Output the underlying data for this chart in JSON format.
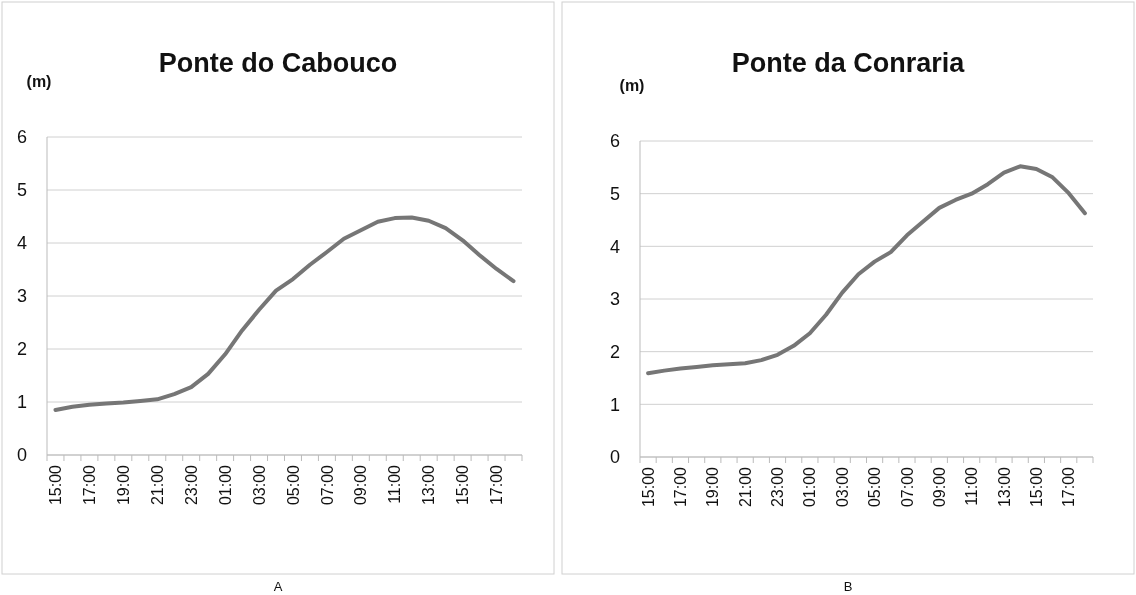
{
  "chart_data": [
    {
      "type": "line",
      "title": "Ponte do Cabouco",
      "ylabel": "(m)",
      "annotations": [
        "A"
      ],
      "categories": [
        "15:00",
        null,
        "17:00",
        null,
        "19:00",
        null,
        "21:00",
        null,
        "23:00",
        null,
        "01:00",
        null,
        "03:00",
        null,
        "05:00",
        null,
        "07:00",
        null,
        "09:00",
        null,
        "11:00",
        null,
        "13:00",
        null,
        "15:00",
        null,
        "17:00",
        null
      ],
      "series": [
        {
          "color": "#767676",
          "values": [
            0.85,
            0.91,
            0.95,
            0.97,
            0.99,
            1.02,
            1.05,
            1.15,
            1.28,
            1.53,
            1.9,
            2.35,
            2.74,
            3.1,
            3.32,
            3.59,
            3.83,
            4.08,
            4.24,
            4.4,
            4.47,
            4.48,
            4.42,
            4.28,
            4.05,
            3.77,
            3.51,
            3.28
          ]
        }
      ],
      "ylim": [
        0,
        6
      ],
      "yticks": [
        0,
        1,
        2,
        3,
        4,
        5,
        6
      ],
      "grid": "y"
    },
    {
      "type": "line",
      "title": "Ponte da Conraria",
      "ylabel": "(m)",
      "annotations": [
        "B"
      ],
      "categories": [
        "15:00",
        null,
        "17:00",
        null,
        "19:00",
        null,
        "21:00",
        null,
        "23:00",
        null,
        "01:00",
        null,
        "03:00",
        null,
        "05:00",
        null,
        "07:00",
        null,
        "09:00",
        null,
        "11:00",
        null,
        "13:00",
        null,
        "15:00",
        null,
        "17:00",
        null
      ],
      "series": [
        {
          "color": "#767676",
          "values": [
            1.59,
            1.64,
            1.68,
            1.71,
            1.74,
            1.76,
            1.78,
            1.84,
            1.94,
            2.11,
            2.35,
            2.7,
            3.12,
            3.47,
            3.71,
            3.89,
            4.21,
            4.47,
            4.73,
            4.88,
            5.0,
            5.18,
            5.4,
            5.52,
            5.47,
            5.31,
            5.01,
            4.63
          ]
        }
      ],
      "ylim": [
        0,
        6
      ],
      "yticks": [
        0,
        1,
        2,
        3,
        4,
        5,
        6
      ],
      "grid": "y"
    }
  ]
}
